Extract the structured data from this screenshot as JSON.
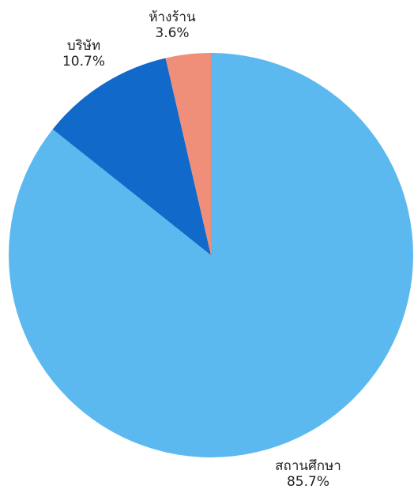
{
  "chart_data": {
    "type": "pie",
    "title": "",
    "slices": [
      {
        "label": "สถานศึกษา",
        "percent_label": "85.7%",
        "value": 85.7,
        "color": "#5cb9f0"
      },
      {
        "label": "บริษัท",
        "percent_label": "10.7%",
        "value": 10.7,
        "color": "#1169c9"
      },
      {
        "label": "ห้างร้าน",
        "percent_label": "3.6%",
        "value": 3.6,
        "color": "#ef8f7a"
      }
    ],
    "start_angle": "12 o'clock",
    "direction": "clockwise",
    "legend": "none"
  }
}
